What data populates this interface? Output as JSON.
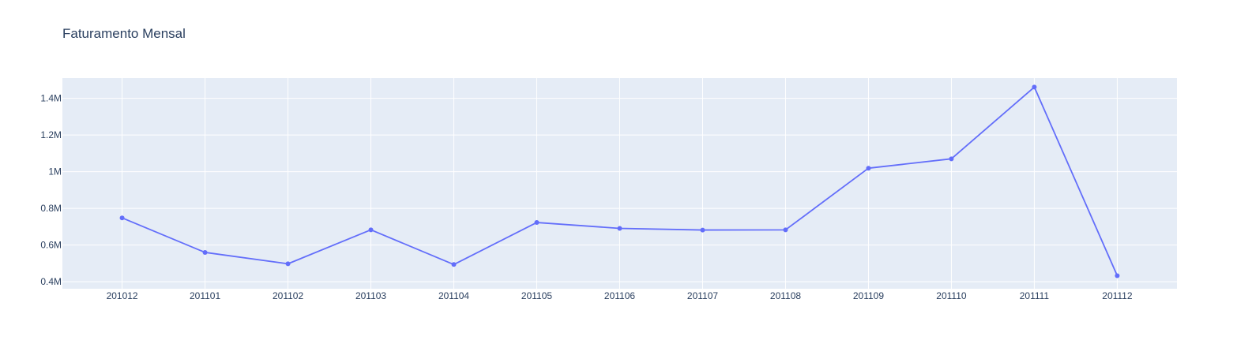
{
  "chart_data": {
    "type": "line",
    "title": "Faturamento Mensal",
    "xlabel": "",
    "ylabel": "",
    "categories": [
      "201012",
      "201101",
      "201102",
      "201103",
      "201104",
      "201105",
      "201106",
      "201107",
      "201108",
      "201109",
      "201110",
      "201111",
      "201112"
    ],
    "series": [
      {
        "values": [
          748000,
          560000,
          498000,
          683000,
          494000,
          723000,
          691000,
          682000,
          683000,
          1019000,
          1070000,
          1461000,
          433000
        ],
        "color": "#636efa",
        "markers": true
      }
    ],
    "ylim": [
      362000,
      1510000
    ],
    "yticks": [
      400000,
      600000,
      800000,
      1000000,
      1200000,
      1400000
    ],
    "ytick_labels": [
      "0.4M",
      "0.6M",
      "0.8M",
      "1M",
      "1.2M",
      "1.4M"
    ],
    "grid": true,
    "legend": "none",
    "plot_bgcolor": "#e5ecf6",
    "grid_color": "#ffffff",
    "text_color": "#2a3f5f"
  }
}
